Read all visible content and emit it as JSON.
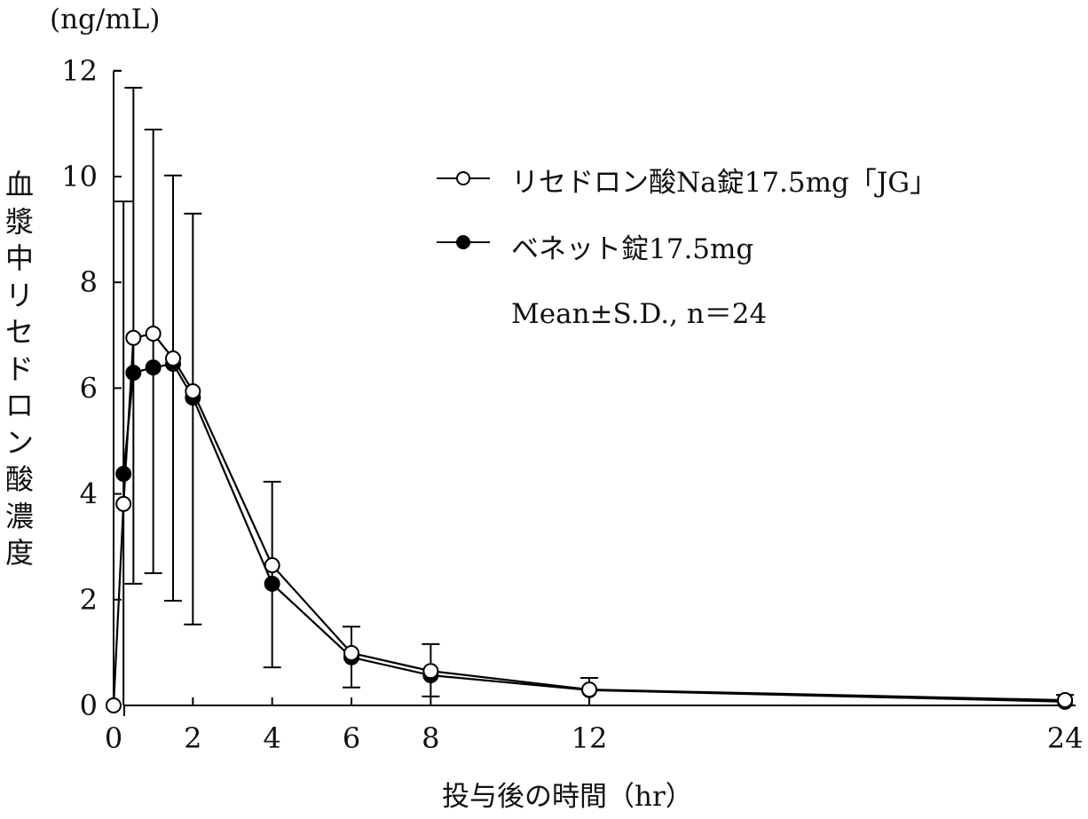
{
  "chart_data": {
    "type": "line",
    "title": "",
    "unit_label": "(ng/mL)",
    "ylabel": "血漿中リセドロン酸濃度",
    "ylabel_chars": [
      "血",
      "漿",
      "中",
      "リ",
      "セ",
      "ド",
      "ロ",
      "ン",
      "酸",
      "濃",
      "度"
    ],
    "xlabel": "投与後の時間（hr）",
    "xlim": [
      0,
      24
    ],
    "ylim": [
      0,
      12
    ],
    "x_ticks": [
      0,
      2,
      4,
      6,
      8,
      12,
      24
    ],
    "y_ticks": [
      0,
      2,
      4,
      6,
      8,
      10,
      12
    ],
    "grid": false,
    "legend_position": "upper right",
    "annotation": "Mean±S.D., n＝24",
    "series": [
      {
        "name": "リセドロン酸Na錠17.5mg「JG」",
        "marker": "open-circle",
        "x": [
          0,
          0.25,
          0.5,
          1,
          1.5,
          2,
          4,
          6,
          8,
          12,
          24
        ],
        "values": [
          0,
          3.81,
          6.95,
          7.03,
          6.56,
          5.94,
          2.65,
          0.99,
          0.65,
          0.3,
          0.1
        ],
        "sd_upper": [
          null,
          null,
          11.68,
          10.89,
          10.02,
          9.3,
          4.23,
          1.49,
          1.16,
          0.52,
          0.2
        ],
        "sd_lower": [
          null,
          null,
          null,
          null,
          null,
          null,
          null,
          null,
          null,
          null,
          null
        ]
      },
      {
        "name": "ベネット錠17.5mg",
        "marker": "filled-circle",
        "x": [
          0.25,
          0.5,
          1,
          1.5,
          2,
          4,
          6,
          8,
          12,
          24
        ],
        "values": [
          4.38,
          6.29,
          6.39,
          6.46,
          5.82,
          2.3,
          0.91,
          0.57,
          0.29,
          0.07
        ],
        "sd_upper": [
          null,
          null,
          null,
          null,
          null,
          null,
          null,
          null,
          null,
          null
        ],
        "sd_lower": [
          0.0,
          2.3,
          2.5,
          1.98,
          1.53,
          0.72,
          0.34,
          0.17,
          0.0,
          0.01
        ]
      }
    ],
    "error_bars": [
      {
        "x": 0.25,
        "top": 9.53,
        "bottom": 0
      },
      {
        "x": 0.5,
        "top": 11.68,
        "bottom": 2.3
      },
      {
        "x": 1,
        "top": 10.89,
        "bottom": 2.5
      },
      {
        "x": 1.5,
        "top": 10.02,
        "bottom": 1.98
      },
      {
        "x": 2,
        "top": 9.3,
        "bottom": 1.53
      },
      {
        "x": 4,
        "top": 4.23,
        "bottom": 0.72
      },
      {
        "x": 6,
        "top": 1.49,
        "bottom": 0.34
      },
      {
        "x": 8,
        "top": 1.16,
        "bottom": 0.17
      },
      {
        "x": 12,
        "top": 0.52,
        "bottom": 0.0
      },
      {
        "x": 24,
        "top": 0.2,
        "bottom": 0.01
      }
    ]
  },
  "legend": {
    "items": [
      {
        "label": "リセドロン酸Na錠17.5mg「JG」",
        "marker": "open-circle"
      },
      {
        "label": "ベネット錠17.5mg",
        "marker": "filled-circle"
      }
    ],
    "note": "Mean±S.D., n＝24"
  },
  "style": {
    "line_color": "#000000",
    "background": "#ffffff"
  }
}
